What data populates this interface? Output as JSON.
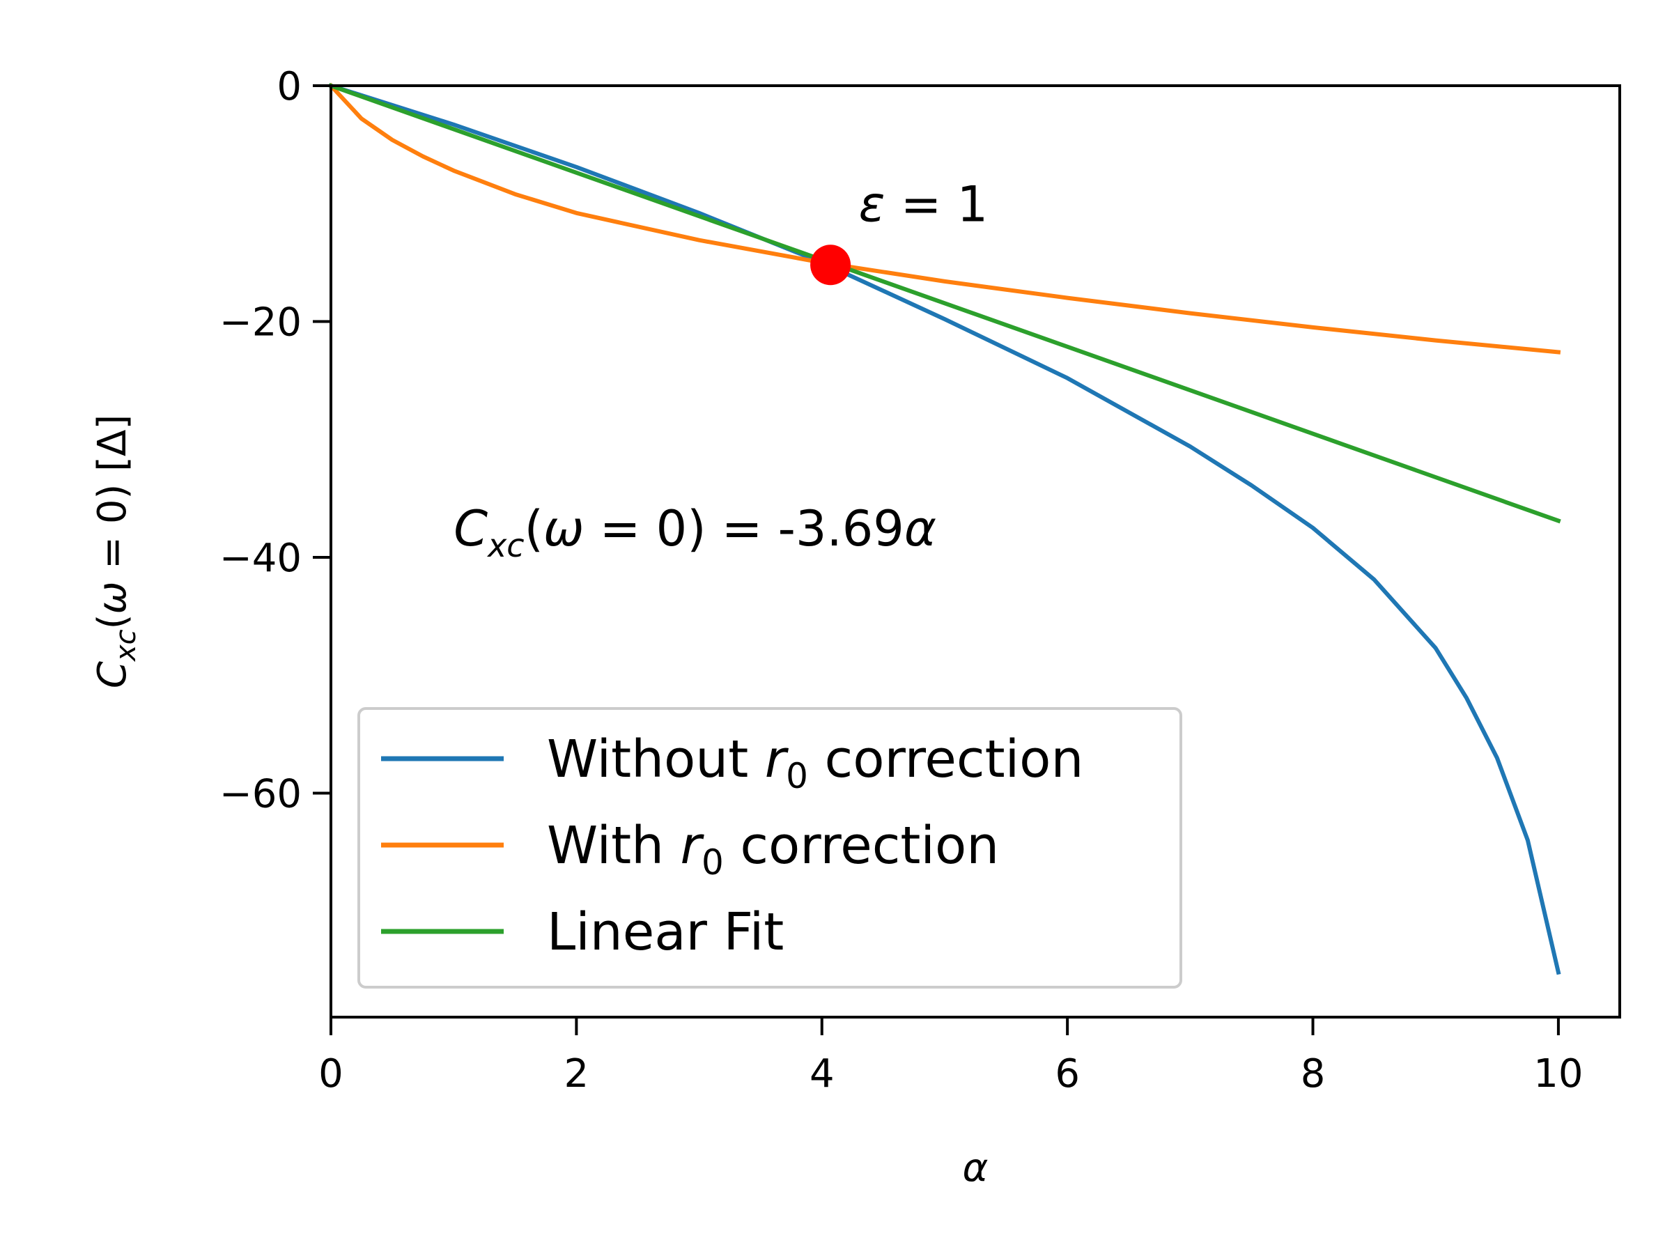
{
  "chart_data": {
    "type": "line",
    "xlabel": "α",
    "ylabel": "C_xc(ω = 0) [Δ]",
    "xlim": [
      0,
      10.5
    ],
    "ylim": [
      -79,
      0
    ],
    "xticks": [
      0,
      2,
      4,
      6,
      8,
      10
    ],
    "yticks": [
      0,
      -20,
      -40,
      -60
    ],
    "xtick_labels": [
      "0",
      "2",
      "4",
      "6",
      "8",
      "10"
    ],
    "ytick_labels": [
      "0",
      "−20",
      "−40",
      "−60"
    ],
    "legend_position": "lower-left",
    "grid": false,
    "series": [
      {
        "name": "Without r0 correction",
        "color": "#1f77b4",
        "x": [
          0,
          1,
          2,
          3,
          4,
          5,
          6,
          7,
          7.5,
          8,
          8.5,
          9,
          9.25,
          9.5,
          9.75,
          10
        ],
        "y": [
          0,
          -3.3,
          -6.9,
          -10.8,
          -15.0,
          -19.8,
          -24.8,
          -30.6,
          -33.9,
          -37.5,
          -41.9,
          -47.7,
          -51.9,
          -57.0,
          -64.0,
          -75.2
        ]
      },
      {
        "name": "With r0 correction",
        "color": "#ff7f0e",
        "x": [
          0,
          0.25,
          0.5,
          0.75,
          1,
          1.5,
          2,
          3,
          4,
          5,
          6,
          7,
          8,
          9,
          10
        ],
        "y": [
          0,
          -2.8,
          -4.6,
          -6.0,
          -7.2,
          -9.2,
          -10.8,
          -13.1,
          -15.0,
          -16.6,
          -18.0,
          -19.3,
          -20.5,
          -21.6,
          -22.6
        ]
      },
      {
        "name": "Linear Fit",
        "color": "#2ca02c",
        "x": [
          0,
          10
        ],
        "y": [
          0,
          -36.9
        ]
      }
    ],
    "marker": {
      "x": 4.07,
      "y": -15.2,
      "color": "#ff0000"
    },
    "annotations": {
      "epsilon": {
        "symbol": "ε",
        "rest": " = 1",
        "x": 4.3,
        "y": -11.5
      },
      "fit": {
        "prefix": "C",
        "sub": "xc",
        "open": "(",
        "omega": "ω",
        "mid": " = 0) = -3.69",
        "alpha": "α",
        "x": 1.0,
        "y": -39.0
      }
    },
    "legend": {
      "entries": [
        {
          "pre": "Without ",
          "var": "r",
          "sub": "0",
          "post": " correction"
        },
        {
          "pre": "With ",
          "var": "r",
          "sub": "0",
          "post": " correction"
        },
        {
          "pre": "Linear Fit",
          "var": "",
          "sub": "",
          "post": ""
        }
      ]
    }
  }
}
